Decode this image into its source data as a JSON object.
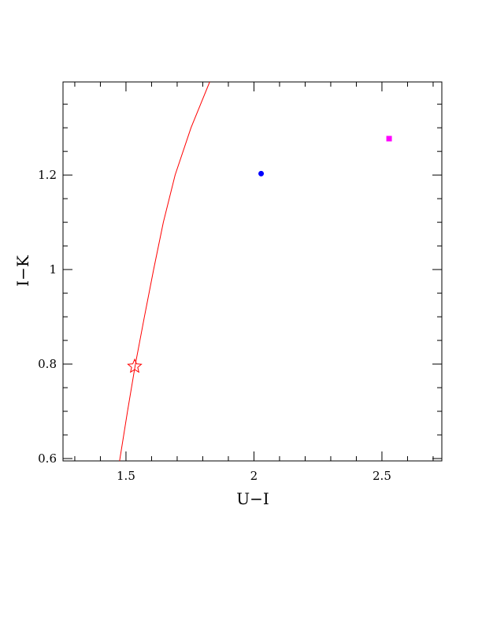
{
  "chart_data": {
    "type": "scatter",
    "x_label": "U−I",
    "y_label": "I−K",
    "xlim": [
      1.254,
      2.734
    ],
    "ylim": [
      0.595,
      1.397
    ],
    "xticks": [
      1.5,
      2,
      2.5
    ],
    "yticks": [
      0.6,
      0.8,
      1,
      1.2
    ],
    "xminorticks": [
      1.3,
      1.4,
      1.6,
      1.7,
      1.8,
      1.9,
      2.1,
      2.2,
      2.3,
      2.4,
      2.6,
      2.7
    ],
    "yminorticks": [
      0.65,
      0.7,
      0.75,
      0.85,
      0.9,
      0.95,
      1.05,
      1.1,
      1.15,
      1.25,
      1.3,
      1.35
    ],
    "series": [
      {
        "type": "line",
        "color": "#ff0000",
        "x": [
          1.475,
          1.506,
          1.537,
          1.572,
          1.608,
          1.646,
          1.692,
          1.754,
          1.827
        ],
        "values": [
          0.595,
          0.7,
          0.8,
          0.9,
          1.0,
          1.1,
          1.2,
          1.3,
          1.397
        ]
      },
      {
        "type": "scatter",
        "marker": "star",
        "color": "#ff0000",
        "x": [
          1.534
        ],
        "values": [
          0.795
        ]
      },
      {
        "type": "scatter",
        "marker": "circle",
        "color": "#0000ff",
        "x": [
          2.028
        ],
        "values": [
          1.203
        ]
      },
      {
        "type": "scatter",
        "marker": "square",
        "color": "#ff00ff",
        "x": [
          2.528
        ],
        "values": [
          1.277
        ]
      }
    ]
  }
}
